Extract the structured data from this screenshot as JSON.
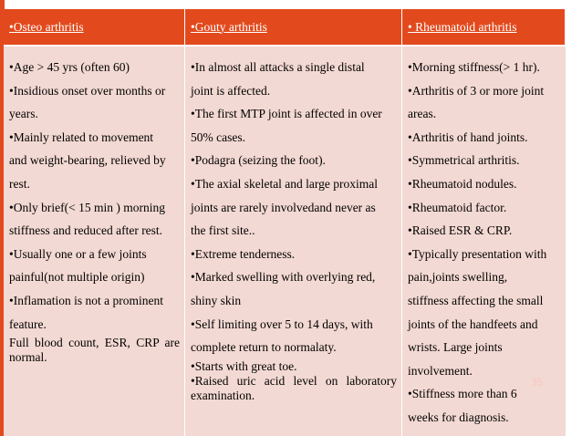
{
  "headers": [
    "•Osteo arthritis",
    "•Gouty arthritis",
    "• Rheumatoid arthritis"
  ],
  "columns": [
    {
      "lines": [
        "•Age > 45 yrs (often 60)",
        "•Insidious onset over months or",
        "years.",
        "•Mainly related to movement",
        "and weight-bearing, relieved by",
        "rest.",
        "•Only brief(< 15 min ) morning",
        "stiffness and reduced after rest.",
        "•Usually one or a few joints",
        "painful(not multiple origin)",
        "•Inflamation is not a prominent",
        "feature."
      ],
      "note": "Full blood count, ESR, CRP are normal."
    },
    {
      "lines": [
        "•In almost all attacks a single distal",
        "joint is affected.",
        "•The first MTP joint is affected in over",
        "50% cases.",
        "•Podagra (seizing the foot).",
        "•The axial skeletal and large proximal",
        "joints are rarely involvedand never as",
        "the first site..",
        "•Extreme tenderness.",
        "•Marked swelling with overlying red,",
        "shiny skin",
        "•Self limiting over 5 to 14 days, with",
        "complete return to normalaty."
      ],
      "note1": "•Starts with great toe.",
      "note2": "•Raised uric acid level on      laboratory examination."
    },
    {
      "lines": [
        "•Morning stiffness(> 1 hr).",
        "•Arthritis of 3 or more joint",
        "areas.",
        "•Arthritis of hand joints.",
        "•Symmetrical arthritis.",
        "•Rheumatoid nodules.",
        "•Rheumatoid factor.",
        "•Raised ESR & CRP.",
        "•Typically presentation with",
        "pain,joints swelling,",
        "stiffness affecting the small",
        "joints of the handfeets and",
        "wrists. Large joints",
        "involvement.",
        "•Stiffness more than 6",
        "weeks for diagnosis."
      ]
    }
  ],
  "page_number": "35",
  "colors": {
    "accent": "#e24a1d",
    "body_fill": "#f3d9d3",
    "header_text": "#ffffff",
    "page_number": "#f7c8bd"
  }
}
